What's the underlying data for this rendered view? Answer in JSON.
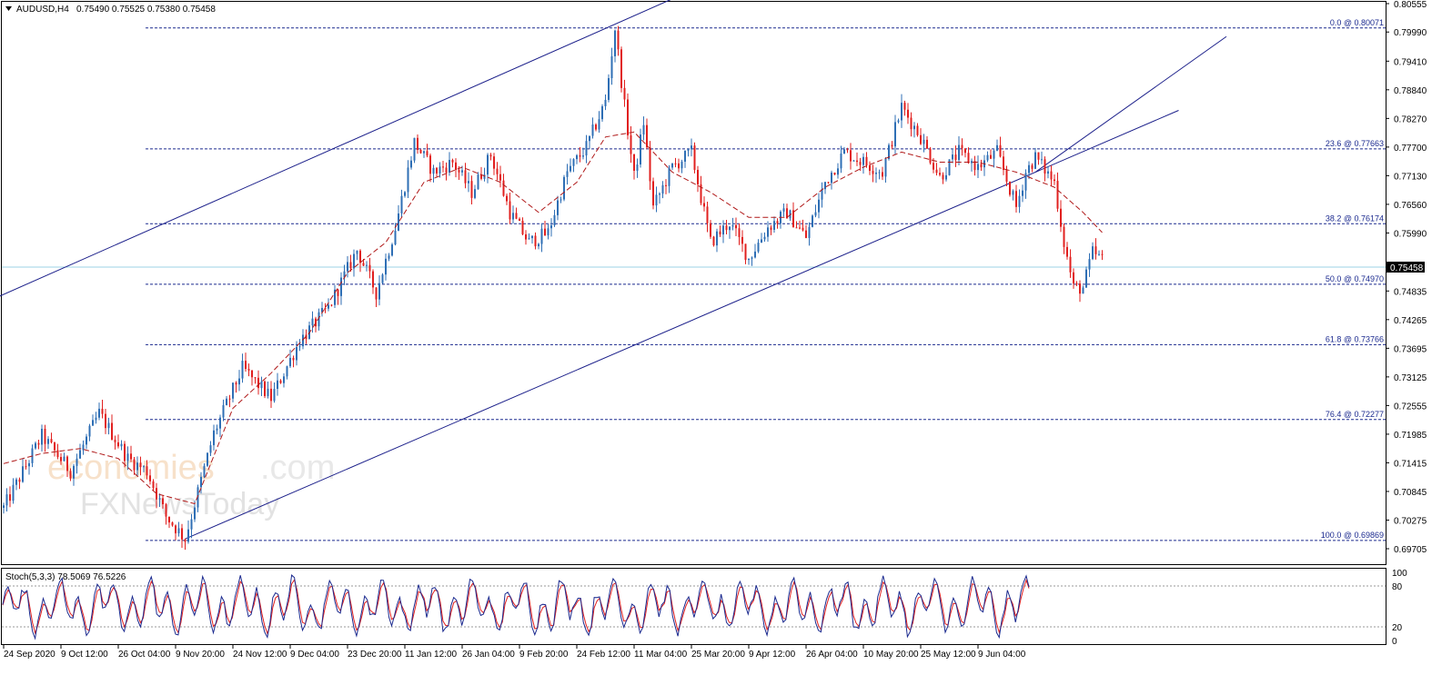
{
  "header": {
    "symbol": "AUDUSD,H4",
    "ohlc": "0.75490 0.75525 0.75380 0.75458"
  },
  "watermark": {
    "line1_part1": "economies",
    "line1_part2": ".com",
    "line2": "FXNewsToday"
  },
  "colors": {
    "bull_candle": "#2f6fb5",
    "bear_candle": "#e1201f",
    "channel": "#1b1f8a",
    "fibo": "#1b2a8f",
    "ma": "#b01919",
    "stoch_main": "#1b2a8f",
    "stoch_signal": "#e1201f",
    "price_line": "#9ed3e6"
  },
  "chart_data": {
    "type": "candlestick",
    "symbol": "AUDUSD",
    "timeframe": "H4",
    "last_price": "0.75458",
    "ylim": [
      0.69705,
      0.80555
    ],
    "price_ticks": [
      "0.80555",
      "0.79990",
      "0.79410",
      "0.78840",
      "0.78270",
      "0.77700",
      "0.77130",
      "0.76560",
      "0.75990",
      "0.74835",
      "0.74265",
      "0.73695",
      "0.73125",
      "0.72555",
      "0.71985",
      "0.71415",
      "0.70845",
      "0.70275",
      "0.69705"
    ],
    "x_labels": [
      "24 Sep 2020",
      "9 Oct 12:00",
      "26 Oct 04:00",
      "9 Nov 20:00",
      "24 Nov 12:00",
      "9 Dec 04:00",
      "23 Dec 20:00",
      "11 Jan 12:00",
      "26 Jan 04:00",
      "9 Feb 20:00",
      "24 Feb 12:00",
      "11 Mar 04:00",
      "25 Mar 20:00",
      "9 Apr 12:00",
      "26 Apr 04:00",
      "10 May 20:00",
      "25 May 12:00",
      "9 Jun 04:00"
    ],
    "price_path": [
      [
        0,
        0.7052
      ],
      [
        4,
        0.7195
      ],
      [
        7,
        0.7125
      ],
      [
        10,
        0.724
      ],
      [
        13,
        0.715
      ],
      [
        15,
        0.7125
      ],
      [
        17,
        0.7035
      ],
      [
        19,
        0.699
      ],
      [
        22,
        0.72
      ],
      [
        25,
        0.733
      ],
      [
        28,
        0.727
      ],
      [
        31,
        0.7385
      ],
      [
        34,
        0.745
      ],
      [
        37,
        0.7565
      ],
      [
        39,
        0.748
      ],
      [
        41,
        0.761
      ],
      [
        43,
        0.778
      ],
      [
        45,
        0.772
      ],
      [
        47,
        0.774
      ],
      [
        49,
        0.768
      ],
      [
        51,
        0.7755
      ],
      [
        53,
        0.764
      ],
      [
        55,
        0.758
      ],
      [
        57,
        0.76
      ],
      [
        59,
        0.772
      ],
      [
        61,
        0.777
      ],
      [
        63,
        0.786
      ],
      [
        64,
        0.8007
      ],
      [
        65,
        0.785
      ],
      [
        66,
        0.771
      ],
      [
        67,
        0.782
      ],
      [
        68,
        0.765
      ],
      [
        70,
        0.773
      ],
      [
        72,
        0.776
      ],
      [
        74,
        0.758
      ],
      [
        76,
        0.762
      ],
      [
        78,
        0.7548
      ],
      [
        80,
        0.761
      ],
      [
        82,
        0.764
      ],
      [
        84,
        0.759
      ],
      [
        86,
        0.77
      ],
      [
        88,
        0.776
      ],
      [
        90,
        0.774
      ],
      [
        92,
        0.772
      ],
      [
        94,
        0.785
      ],
      [
        96,
        0.779
      ],
      [
        98,
        0.771
      ],
      [
        100,
        0.776
      ],
      [
        102,
        0.773
      ],
      [
        104,
        0.776
      ],
      [
        106,
        0.765
      ],
      [
        107,
        0.772
      ],
      [
        108,
        0.775
      ],
      [
        110,
        0.77
      ],
      [
        111,
        0.758
      ],
      [
        112,
        0.749
      ],
      [
        113,
        0.749
      ],
      [
        114,
        0.756
      ],
      [
        115,
        0.7546
      ]
    ],
    "ma_path": [
      [
        0,
        0.714
      ],
      [
        4,
        0.716
      ],
      [
        8,
        0.717
      ],
      [
        12,
        0.715
      ],
      [
        16,
        0.708
      ],
      [
        20,
        0.706
      ],
      [
        24,
        0.725
      ],
      [
        28,
        0.732
      ],
      [
        32,
        0.74
      ],
      [
        36,
        0.752
      ],
      [
        40,
        0.758
      ],
      [
        44,
        0.77
      ],
      [
        48,
        0.773
      ],
      [
        52,
        0.77
      ],
      [
        56,
        0.764
      ],
      [
        60,
        0.77
      ],
      [
        63,
        0.779
      ],
      [
        66,
        0.78
      ],
      [
        70,
        0.772
      ],
      [
        74,
        0.768
      ],
      [
        78,
        0.763
      ],
      [
        82,
        0.763
      ],
      [
        86,
        0.769
      ],
      [
        90,
        0.773
      ],
      [
        94,
        0.776
      ],
      [
        98,
        0.774
      ],
      [
        102,
        0.774
      ],
      [
        106,
        0.772
      ],
      [
        110,
        0.769
      ],
      [
        113,
        0.764
      ],
      [
        115,
        0.76
      ]
    ],
    "fibonacci": [
      {
        "label": "0.0 @ 0.80071",
        "price": 0.80071
      },
      {
        "label": "23.6 @ 0.77663",
        "price": 0.77663
      },
      {
        "label": "38.2 @ 0.76174",
        "price": 0.76174
      },
      {
        "label": "50.0 @ 0.74970",
        "price": 0.7497
      },
      {
        "label": "61.8 @ 0.73766",
        "price": 0.73766
      },
      {
        "label": "76.4 @ 0.72277",
        "price": 0.72277
      },
      {
        "label": "100.0 @ 0.69869",
        "price": 0.69869
      }
    ],
    "channel": {
      "upper": [
        [
          -2,
          0.746
        ],
        [
          70,
          0.8065
        ]
      ],
      "lower": [
        [
          19,
          0.699
        ],
        [
          108,
          0.772
        ]
      ],
      "parallel_upper": [
        [
          108,
          0.772
        ],
        [
          128,
          0.799
        ]
      ]
    },
    "stochastic": {
      "label": "Stoch(5,3,3) 78.5069 76.5226",
      "params": "5,3,3",
      "main": 78.5069,
      "signal": 76.5226,
      "levels": [
        20,
        80
      ],
      "axis_ticks": [
        "100",
        "80",
        "20",
        "0"
      ]
    }
  }
}
